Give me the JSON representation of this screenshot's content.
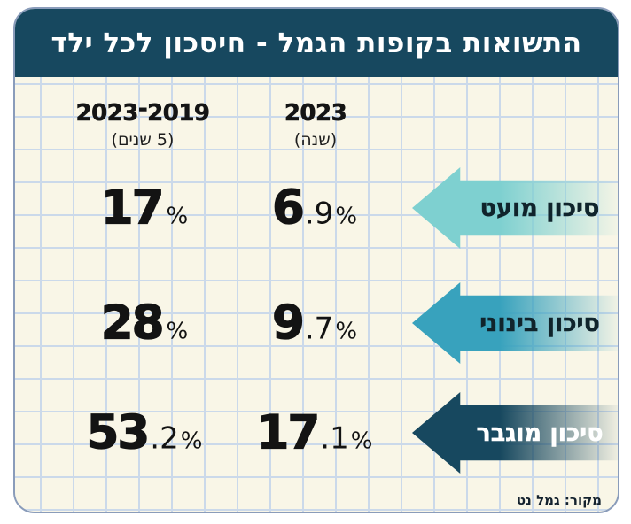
{
  "title": "התשואות בקופות הגמל - חיסכון לכל ילד",
  "columns": [
    {
      "period": "2019־2023",
      "unit": "(5 שנים)"
    },
    {
      "period": "2023",
      "unit": "(שנה)"
    }
  ],
  "rows": [
    {
      "label": "סיכון מועט",
      "five_year": {
        "int": "17",
        "dec": "",
        "pct": "%"
      },
      "one_year": {
        "int": "6",
        "dec": ".9",
        "pct": "%"
      }
    },
    {
      "label": "סיכון בינוני",
      "five_year": {
        "int": "28",
        "dec": "",
        "pct": "%"
      },
      "one_year": {
        "int": "9",
        "dec": ".7",
        "pct": "%"
      }
    },
    {
      "label": "סיכון מוגבר",
      "five_year": {
        "int": "53",
        "dec": ".2",
        "pct": "%"
      },
      "one_year": {
        "int": "17",
        "dec": ".1",
        "pct": "%"
      }
    }
  ],
  "source": "מקור: גמל נט",
  "colors": {
    "header_bg": "#17485f",
    "arrow_low": "#7ed0d0",
    "arrow_medium": "#38a2bd",
    "arrow_high": "#17485f",
    "background": "#f9f6e7",
    "grid_line": "#cbd9ea",
    "title_text": "#ffffff",
    "number_text": "#131313"
  },
  "chart_data": {
    "type": "table",
    "title": "התשואות בקופות הגמל - חיסכון לכל ילד",
    "categories": [
      "סיכון מועט",
      "סיכון בינוני",
      "סיכון מוגבר"
    ],
    "series": [
      {
        "name": "2019-2023 (5 שנים)",
        "values": [
          17,
          28,
          53.2
        ],
        "unit": "%"
      },
      {
        "name": "2023 (שנה)",
        "values": [
          6.9,
          9.7,
          17.1
        ],
        "unit": "%"
      }
    ],
    "legend_position": "top",
    "source": "מקור: גמל נט"
  }
}
